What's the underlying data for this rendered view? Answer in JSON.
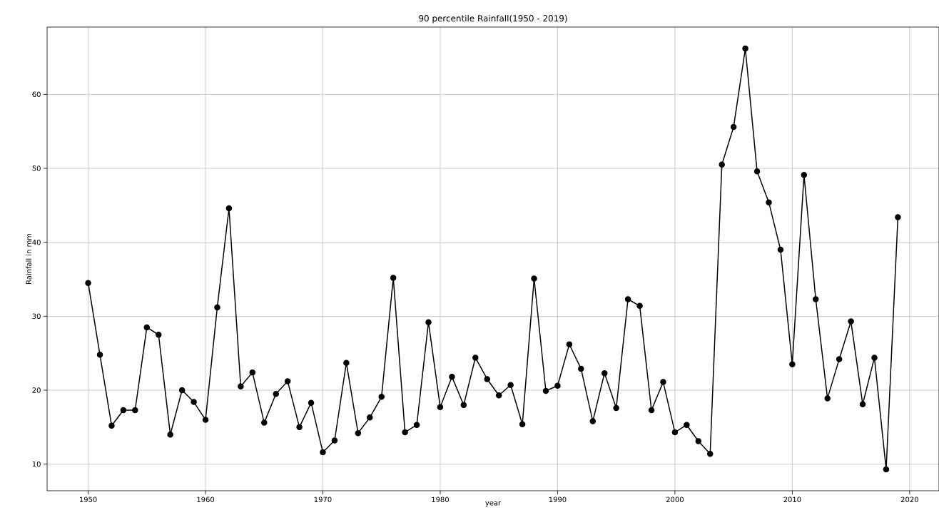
{
  "chart_data": {
    "type": "line",
    "title": "90 percentile Rainfall(1950 - 2019)",
    "xlabel": "year",
    "ylabel": "Rainfall in mm",
    "x": [
      1950,
      1951,
      1952,
      1953,
      1954,
      1955,
      1956,
      1957,
      1958,
      1959,
      1960,
      1961,
      1962,
      1963,
      1964,
      1965,
      1966,
      1967,
      1968,
      1969,
      1970,
      1971,
      1972,
      1973,
      1974,
      1975,
      1976,
      1977,
      1978,
      1979,
      1980,
      1981,
      1982,
      1983,
      1984,
      1985,
      1986,
      1987,
      1988,
      1989,
      1990,
      1991,
      1992,
      1993,
      1994,
      1995,
      1996,
      1997,
      1998,
      1999,
      2000,
      2001,
      2002,
      2003,
      2004,
      2005,
      2006,
      2007,
      2008,
      2009,
      2010,
      2011,
      2012,
      2013,
      2014,
      2015,
      2016,
      2017,
      2018,
      2019
    ],
    "values": [
      34.5,
      24.8,
      15.2,
      17.3,
      17.3,
      28.5,
      27.5,
      14.0,
      20.0,
      18.4,
      16.0,
      31.2,
      44.6,
      20.5,
      22.4,
      15.6,
      19.5,
      21.2,
      15.0,
      18.3,
      11.6,
      13.2,
      23.7,
      14.2,
      16.3,
      19.1,
      35.2,
      14.3,
      15.3,
      29.2,
      17.7,
      21.8,
      18.0,
      24.4,
      21.5,
      19.3,
      20.7,
      15.4,
      35.1,
      19.9,
      20.6,
      26.2,
      22.9,
      15.8,
      22.3,
      17.6,
      32.3,
      31.4,
      17.3,
      21.1,
      14.3,
      15.3,
      13.1,
      11.4,
      50.5,
      55.6,
      66.2,
      49.6,
      45.4,
      39.0,
      23.5,
      49.1,
      32.3,
      18.9,
      24.2,
      29.3,
      18.1,
      24.4,
      9.3,
      43.4
    ],
    "color": "#000000",
    "marker": "circle",
    "line_style": "solid",
    "grid": true,
    "xlim": [
      1946.5,
      2022.5
    ],
    "xticks": [
      1950,
      1960,
      1970,
      1980,
      1990,
      2000,
      2010,
      2020
    ],
    "ylim": [
      6.4,
      69.1
    ],
    "yticks": [
      10,
      20,
      30,
      40,
      50,
      60
    ]
  }
}
